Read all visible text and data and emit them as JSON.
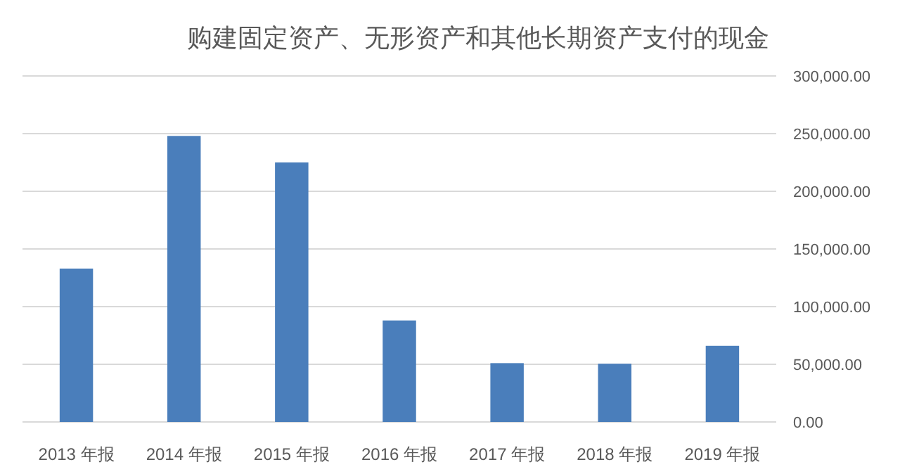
{
  "chart_data": {
    "type": "bar",
    "title": "购建固定资产、无形资产和其他长期资产支付的现金",
    "categories": [
      "2013 年报",
      "2014 年报",
      "2015 年报",
      "2016 年报",
      "2017 年报",
      "2018 年报",
      "2019 年报"
    ],
    "values": [
      133000,
      248000,
      225000,
      88000,
      51000,
      50500,
      66000
    ],
    "color": "#4a7ebb",
    "ylim": [
      0,
      300000
    ],
    "yticks": [
      {
        "value": 0,
        "label": "0.00"
      },
      {
        "value": 50000,
        "label": "50,000.00"
      },
      {
        "value": 100000,
        "label": "100,000.00"
      },
      {
        "value": 150000,
        "label": "150,000.00"
      },
      {
        "value": 200000,
        "label": "200,000.00"
      },
      {
        "value": 250000,
        "label": "250,000.00"
      },
      {
        "value": 300000,
        "label": "300,000.00"
      }
    ],
    "grid": "y"
  }
}
